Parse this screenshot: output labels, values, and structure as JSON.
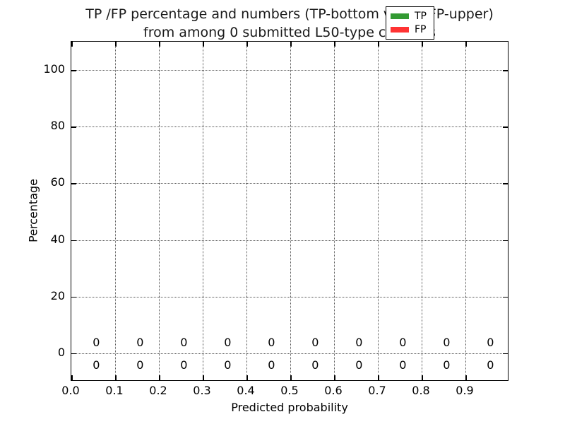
{
  "figure": {
    "title_line1": "TP /FP percentage and numbers (TP-bottom value, FP-upper)",
    "title_line2": "from among 0 submitted L50-type contacts"
  },
  "chart_data": {
    "type": "bar",
    "title": "TP /FP percentage and numbers (TP-bottom value, FP-upper)\nfrom among 0 submitted L50-type contacts",
    "xlabel": "Predicted probability",
    "ylabel": "Percentage",
    "xlim": [
      0.0,
      1.0
    ],
    "ylim": [
      -10,
      110
    ],
    "xtick_values": [
      0.0,
      0.1,
      0.2,
      0.3,
      0.4,
      0.5,
      0.6,
      0.7,
      0.8,
      0.9
    ],
    "xtick_labels": [
      "0.0",
      "0.1",
      "0.2",
      "0.3",
      "0.4",
      "0.5",
      "0.6",
      "0.7",
      "0.8",
      "0.9"
    ],
    "ytick_values": [
      0,
      20,
      40,
      60,
      80,
      100
    ],
    "ytick_labels": [
      "0",
      "20",
      "40",
      "60",
      "80",
      "100"
    ],
    "grid": true,
    "grid_style": "dotted",
    "total_submitted_contacts": 0,
    "contact_type": "L50",
    "label_x_positions": [
      0.057,
      0.157,
      0.257,
      0.357,
      0.457,
      0.557,
      0.657,
      0.757,
      0.857,
      0.957
    ],
    "series": [
      {
        "name": "TP",
        "color": "#339a33",
        "values": [
          0,
          0,
          0,
          0,
          0,
          0,
          0,
          0,
          0,
          0
        ],
        "label_row_y": -4.3
      },
      {
        "name": "FP",
        "color": "#ff3333",
        "values": [
          0,
          0,
          0,
          0,
          0,
          0,
          0,
          0,
          0,
          0
        ],
        "label_row_y": 3.6
      }
    ],
    "legend": {
      "position": "upper right",
      "entries": [
        {
          "label": "TP",
          "color": "#339a33"
        },
        {
          "label": "FP",
          "color": "#ff3333"
        }
      ]
    }
  }
}
